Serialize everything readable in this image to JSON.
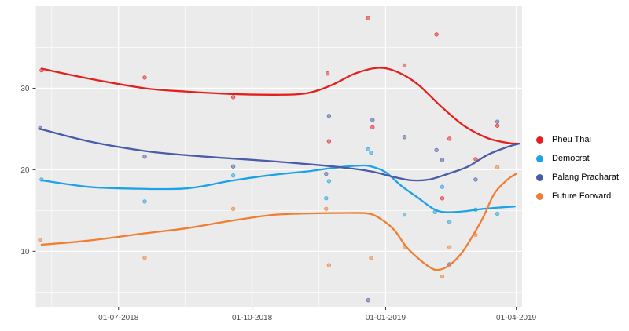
{
  "chart": {
    "background": "#FFFFFF",
    "panel_background": "#EBEBEB",
    "grid_color": "#FFFFFF",
    "tick_color": "#333333",
    "tick_label_color": "#4D4D4D"
  },
  "legend": {
    "items": [
      {
        "label": "Pheu Thai",
        "color": "#E3201D"
      },
      {
        "label": "Democrat",
        "color": "#1CA2E8"
      },
      {
        "label": "Palang Pracharat",
        "color": "#4A5CA8"
      },
      {
        "label": "Future Forward",
        "color": "#EF7E33"
      }
    ]
  },
  "chart_data": {
    "type": "scatter",
    "smoother": "loess",
    "title": "",
    "xlabel": "",
    "ylabel": "",
    "legend_position": "right",
    "grid": "on",
    "x_axis": {
      "domain": [
        "2018-05-05",
        "2019-04-05"
      ],
      "major_ticks": [
        {
          "label": "01-07-2018",
          "date": "2018-07-01"
        },
        {
          "label": "01-10-2018",
          "date": "2018-10-01"
        },
        {
          "label": "01-01-2019",
          "date": "2019-01-01"
        },
        {
          "label": "01-04-2019",
          "date": "2019-04-01"
        }
      ],
      "minor_tick_dates": [
        "2018-05-16",
        "2018-08-16",
        "2018-11-16",
        "2019-02-15"
      ]
    },
    "y_axis": {
      "domain": [
        3.2,
        40.05
      ],
      "major_ticks": [
        10,
        20,
        30
      ],
      "minor_ticks": [
        5,
        15,
        25,
        35
      ]
    },
    "series": [
      {
        "name": "Pheu Thai",
        "color": "#E3201D",
        "points": [
          [
            "2018-05-09",
            32.2
          ],
          [
            "2018-07-19",
            31.3
          ],
          [
            "2018-09-18",
            28.9
          ],
          [
            "2018-11-22",
            31.8
          ],
          [
            "2018-11-23",
            23.5
          ],
          [
            "2018-12-20",
            38.6
          ],
          [
            "2018-12-23",
            25.2
          ],
          [
            "2019-01-14",
            32.8
          ],
          [
            "2019-02-05",
            36.6
          ],
          [
            "2019-02-09",
            16.5
          ],
          [
            "2019-02-14",
            23.8
          ],
          [
            "2019-03-04",
            21.3
          ],
          [
            "2019-03-19",
            25.4
          ]
        ],
        "smooth": [
          [
            "2018-05-09",
            32.4
          ],
          [
            "2018-06-10",
            31.2
          ],
          [
            "2018-07-19",
            30.0
          ],
          [
            "2018-08-16",
            29.6
          ],
          [
            "2018-09-15",
            29.3
          ],
          [
            "2018-10-18",
            29.2
          ],
          [
            "2018-11-08",
            29.4
          ],
          [
            "2018-11-25",
            30.4
          ],
          [
            "2018-12-11",
            31.8
          ],
          [
            "2018-12-27",
            32.5
          ],
          [
            "2019-01-09",
            32.0
          ],
          [
            "2019-01-23",
            30.5
          ],
          [
            "2019-02-08",
            27.8
          ],
          [
            "2019-02-24",
            25.4
          ],
          [
            "2019-03-12",
            23.9
          ],
          [
            "2019-03-26",
            23.3
          ],
          [
            "2019-04-03",
            23.2
          ]
        ]
      },
      {
        "name": "Democrat",
        "color": "#1CA2E8",
        "points": [
          [
            "2018-05-09",
            18.8
          ],
          [
            "2018-07-19",
            16.1
          ],
          [
            "2018-09-18",
            19.3
          ],
          [
            "2018-11-21",
            16.5
          ],
          [
            "2018-11-23",
            18.6
          ],
          [
            "2018-12-20",
            22.5
          ],
          [
            "2018-12-22",
            22.1
          ],
          [
            "2019-01-14",
            14.5
          ],
          [
            "2019-02-04",
            14.8
          ],
          [
            "2019-02-09",
            17.9
          ],
          [
            "2019-02-14",
            13.6
          ],
          [
            "2019-03-04",
            15.1
          ],
          [
            "2019-03-19",
            14.6
          ]
        ],
        "smooth": [
          [
            "2018-05-09",
            18.7
          ],
          [
            "2018-06-10",
            17.9
          ],
          [
            "2018-07-06",
            17.7
          ],
          [
            "2018-08-16",
            17.7
          ],
          [
            "2018-09-15",
            18.6
          ],
          [
            "2018-10-12",
            19.3
          ],
          [
            "2018-11-08",
            19.8
          ],
          [
            "2018-11-25",
            20.2
          ],
          [
            "2018-12-13",
            20.5
          ],
          [
            "2018-12-22",
            20.4
          ],
          [
            "2019-01-01",
            19.7
          ],
          [
            "2019-01-12",
            18.0
          ],
          [
            "2019-01-23",
            16.6
          ],
          [
            "2019-02-03",
            15.2
          ],
          [
            "2019-02-11",
            14.8
          ],
          [
            "2019-02-24",
            14.9
          ],
          [
            "2019-03-09",
            15.2
          ],
          [
            "2019-03-23",
            15.4
          ],
          [
            "2019-03-31",
            15.5
          ]
        ]
      },
      {
        "name": "Palang Pracharat",
        "color": "#4A5CA8",
        "points": [
          [
            "2018-05-08",
            25.1
          ],
          [
            "2018-07-19",
            21.6
          ],
          [
            "2018-09-18",
            20.4
          ],
          [
            "2018-11-21",
            19.5
          ],
          [
            "2018-11-23",
            26.6
          ],
          [
            "2018-12-20",
            4.0
          ],
          [
            "2018-12-23",
            26.1
          ],
          [
            "2019-01-14",
            24.0
          ],
          [
            "2019-02-05",
            22.4
          ],
          [
            "2019-02-09",
            21.2
          ],
          [
            "2019-02-14",
            8.4
          ],
          [
            "2019-03-04",
            18.8
          ],
          [
            "2019-03-19",
            25.9
          ]
        ],
        "smooth": [
          [
            "2018-05-08",
            25.0
          ],
          [
            "2018-06-10",
            23.5
          ],
          [
            "2018-07-19",
            22.3
          ],
          [
            "2018-08-16",
            21.8
          ],
          [
            "2018-09-15",
            21.4
          ],
          [
            "2018-10-18",
            21.0
          ],
          [
            "2018-11-14",
            20.6
          ],
          [
            "2018-12-06",
            20.2
          ],
          [
            "2018-12-22",
            19.8
          ],
          [
            "2019-01-07",
            19.1
          ],
          [
            "2019-01-19",
            18.7
          ],
          [
            "2019-01-31",
            18.8
          ],
          [
            "2019-02-13",
            19.5
          ],
          [
            "2019-02-27",
            20.4
          ],
          [
            "2019-03-12",
            21.8
          ],
          [
            "2019-03-26",
            22.8
          ],
          [
            "2019-04-03",
            23.2
          ]
        ]
      },
      {
        "name": "Future Forward",
        "color": "#EF7E33",
        "points": [
          [
            "2018-05-08",
            11.4
          ],
          [
            "2018-07-19",
            9.2
          ],
          [
            "2018-09-18",
            15.2
          ],
          [
            "2018-11-21",
            15.2
          ],
          [
            "2018-11-23",
            8.3
          ],
          [
            "2018-12-22",
            9.2
          ],
          [
            "2019-01-14",
            10.5
          ],
          [
            "2019-02-09",
            6.9
          ],
          [
            "2019-02-14",
            10.5
          ],
          [
            "2019-03-04",
            12.0
          ],
          [
            "2019-03-19",
            20.3
          ]
        ],
        "smooth": [
          [
            "2018-05-09",
            10.8
          ],
          [
            "2018-06-10",
            11.3
          ],
          [
            "2018-07-19",
            12.2
          ],
          [
            "2018-08-16",
            12.8
          ],
          [
            "2018-09-15",
            13.7
          ],
          [
            "2018-10-12",
            14.4
          ],
          [
            "2018-10-31",
            14.6
          ],
          [
            "2018-12-06",
            14.7
          ],
          [
            "2018-12-21",
            14.6
          ],
          [
            "2018-12-30",
            13.8
          ],
          [
            "2019-01-07",
            12.6
          ],
          [
            "2019-01-15",
            10.6
          ],
          [
            "2019-01-23",
            9.2
          ],
          [
            "2019-01-31",
            8.1
          ],
          [
            "2019-02-06",
            7.7
          ],
          [
            "2019-02-14",
            8.3
          ],
          [
            "2019-02-22",
            9.7
          ],
          [
            "2019-03-01",
            11.6
          ],
          [
            "2019-03-09",
            14.1
          ],
          [
            "2019-03-17",
            17.1
          ],
          [
            "2019-03-26",
            18.8
          ],
          [
            "2019-04-01",
            19.5
          ]
        ]
      }
    ]
  }
}
